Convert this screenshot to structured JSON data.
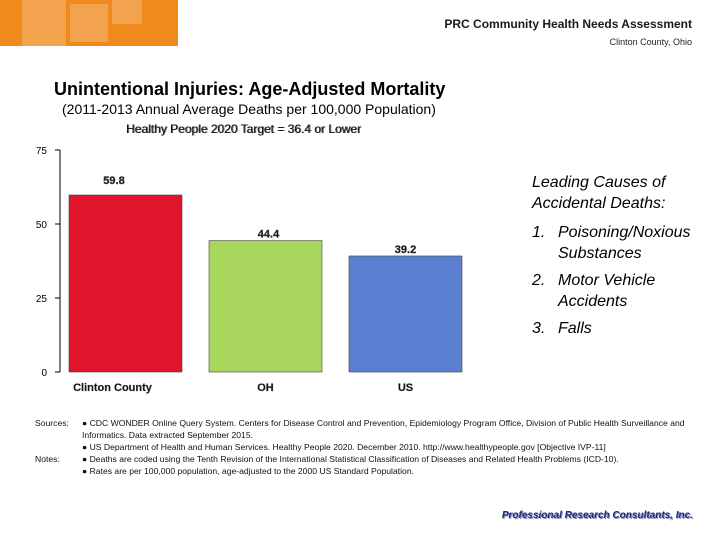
{
  "header": {
    "title": "PRC Community Health Needs Assessment",
    "location": "Clinton County, Ohio"
  },
  "chart_data": {
    "type": "bar",
    "title": "Unintentional Injuries: Age-Adjusted Mortality",
    "subtitle": "(2011-2013 Annual Average Deaths per 100,000 Population)",
    "target_label": "Healthy People 2020 Target = 36.4 or Lower",
    "categories": [
      "Clinton County",
      "OH",
      "US"
    ],
    "values": [
      59.8,
      44.4,
      39.2
    ],
    "value_labels": [
      "59.8",
      "44.4",
      "39.2"
    ],
    "bar_colors": [
      "#e0152e",
      "#a9d65c",
      "#5b7fd1"
    ],
    "ylim": [
      0,
      75
    ],
    "yticks": [
      0,
      25,
      50,
      75
    ],
    "ytick_labels": [
      "0",
      "25",
      "50",
      "75"
    ],
    "xlabel": "",
    "ylabel": "",
    "grid": false
  },
  "leading_causes": {
    "heading": "Leading Causes of Accidental Deaths:",
    "items": [
      {
        "num": "1.",
        "text": "Poisoning/Noxious Substances"
      },
      {
        "num": "2.",
        "text": "Motor Vehicle Accidents"
      },
      {
        "num": "3.",
        "text": "Falls"
      }
    ]
  },
  "sources": {
    "label": "Sources:",
    "line1": "● CDC WONDER Online Query System. Centers for Disease Control and Prevention, Epidemiology Program Office, Division of Public Health Surveillance and Informatics. Data extracted September 2015.",
    "line2": "● US Department of Health and Human Services. Healthy People 2020. December 2010. http://www.healthypeople.gov [Objective IVP-11]"
  },
  "notes": {
    "label": "Notes:",
    "line1": "● Deaths are coded using the Tenth Revision of the International Statistical Classification of Diseases and Related Health Problems (ICD-10).",
    "line2": "● Rates are per 100,000 population, age-adjusted to the 2000 US Standard Population."
  },
  "footer_logo": "Professional Research Consultants, Inc.",
  "colors": {
    "logo_orange": "#f08a1c",
    "logo_text": "#1f2a7a"
  }
}
